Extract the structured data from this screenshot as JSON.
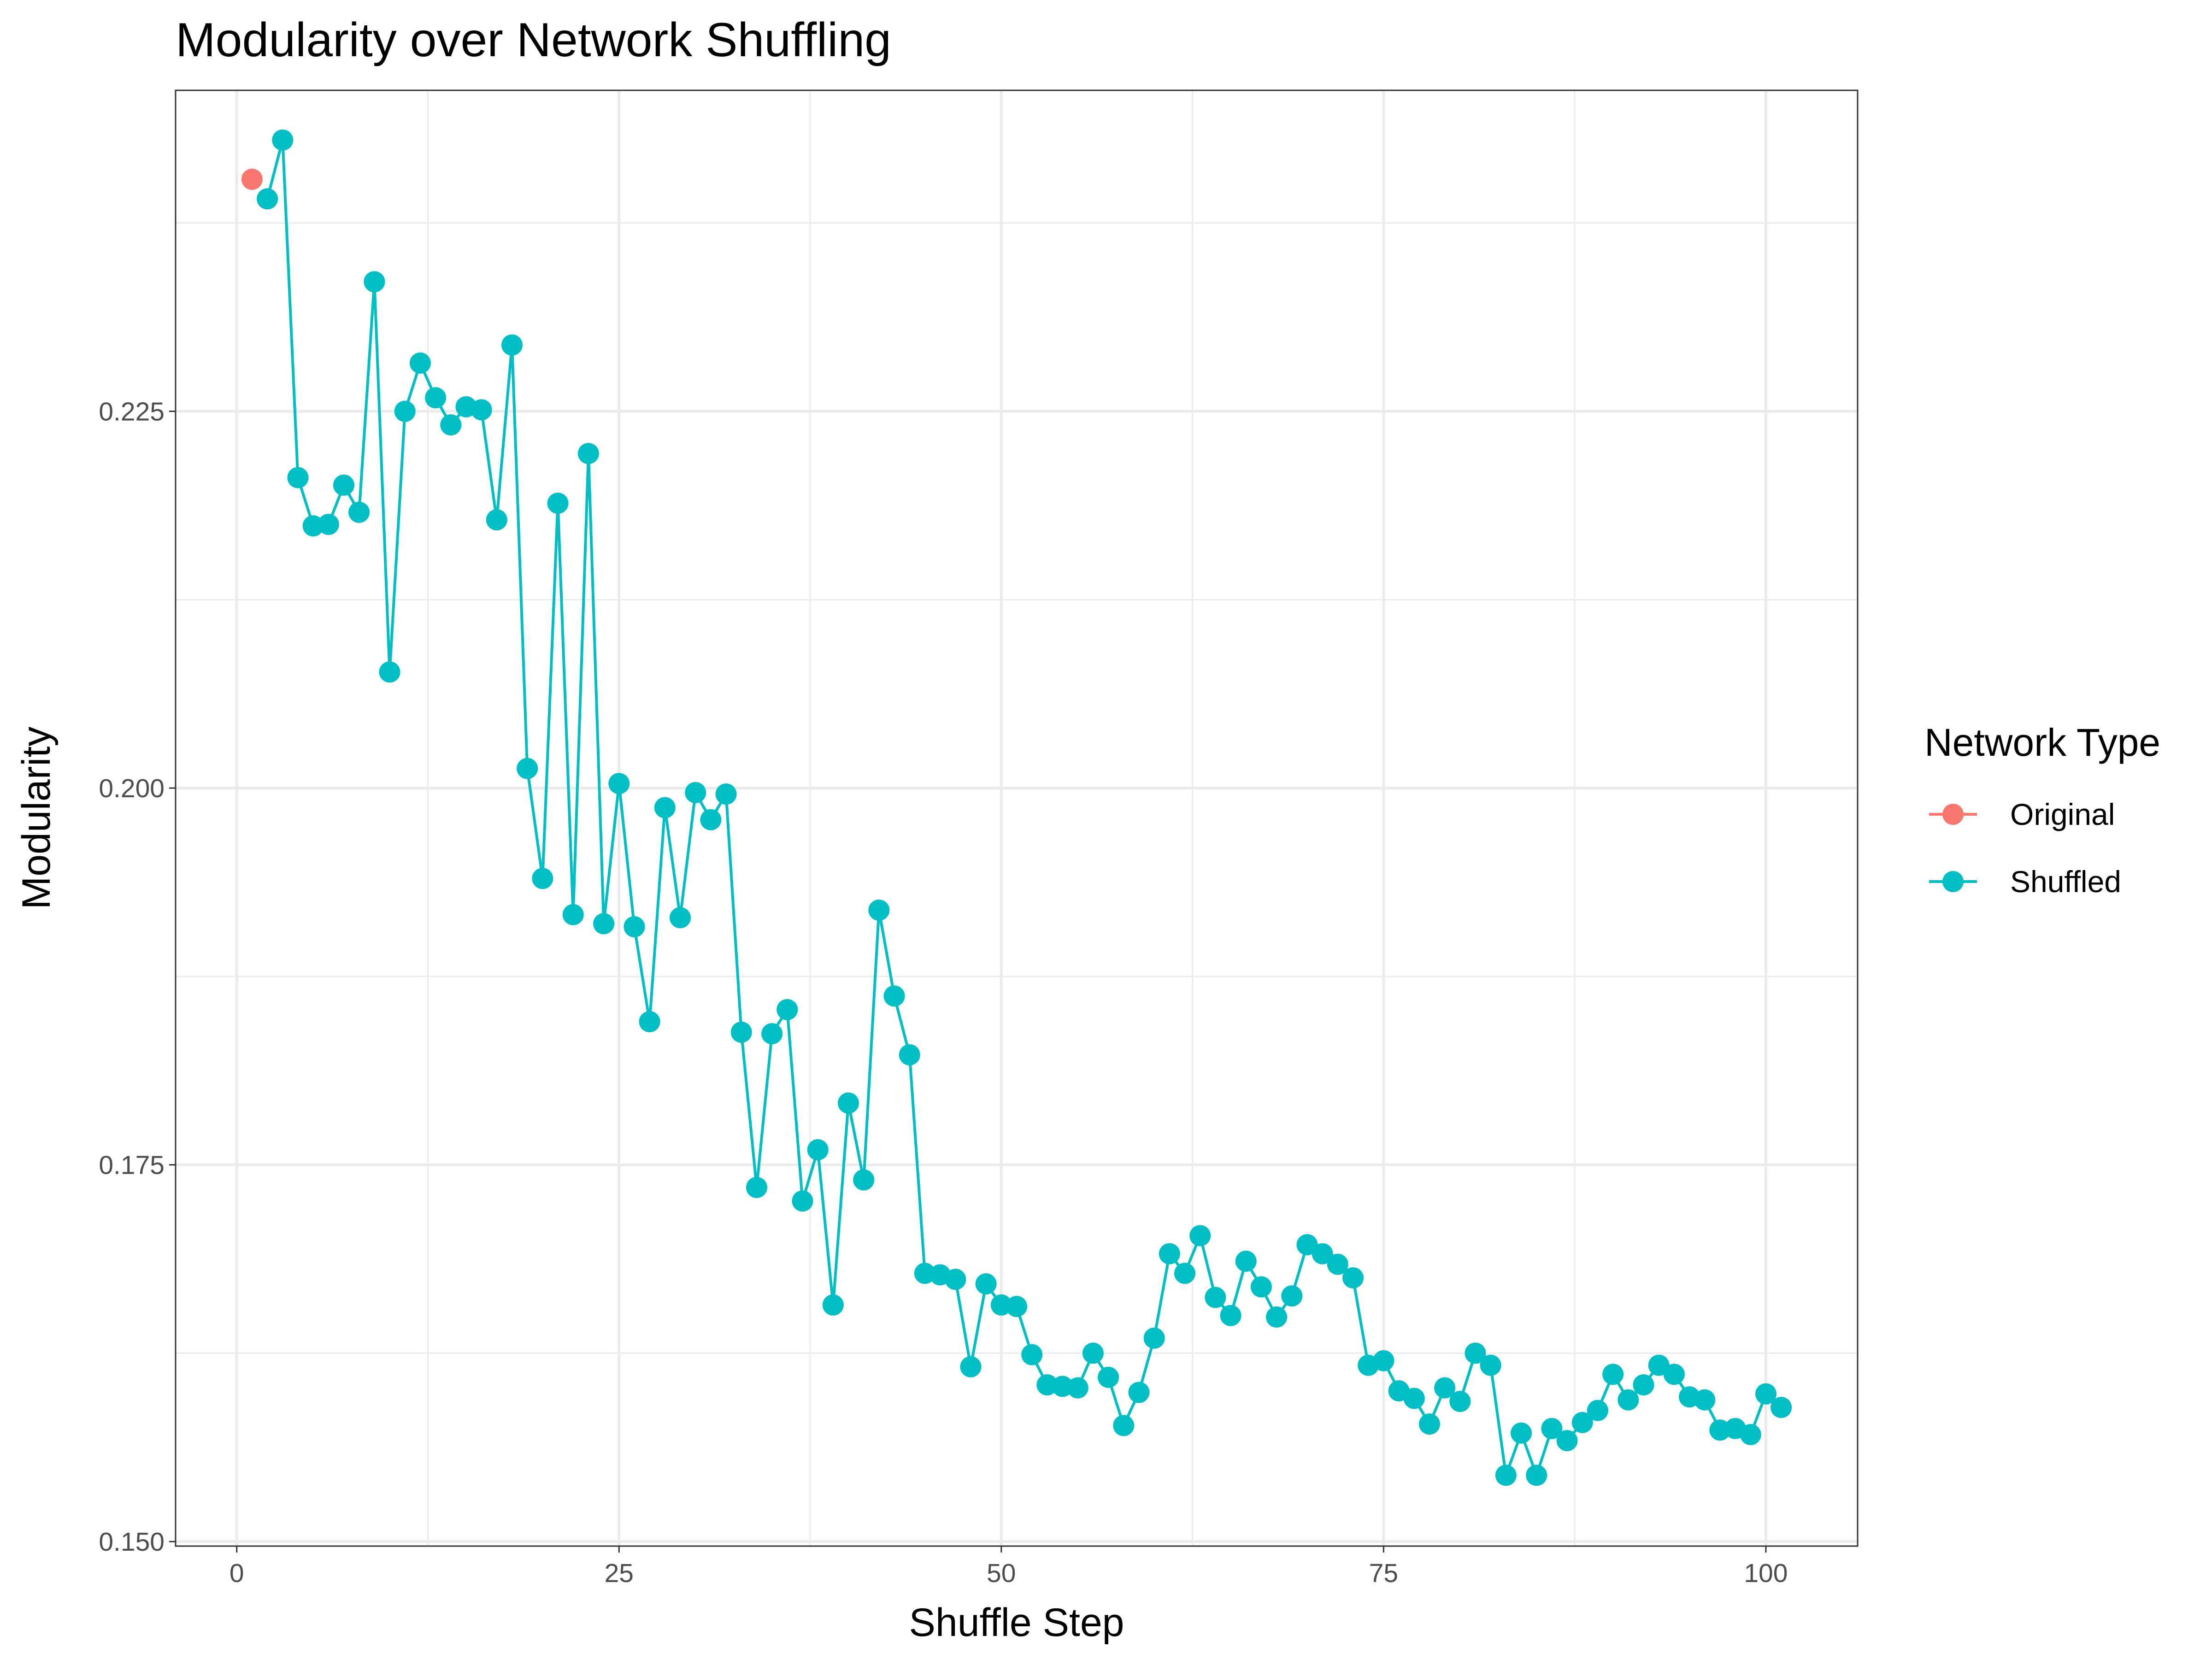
{
  "chart_data": {
    "type": "line",
    "title": "Modularity over Network Shuffling",
    "xlabel": "Shuffle Step",
    "ylabel": "Modularity",
    "xlim": [
      -4,
      106
    ],
    "ylim": [
      0.1497,
      0.2463
    ],
    "x_ticks": [
      0,
      25,
      50,
      75,
      100
    ],
    "x_tick_labels": [
      "0",
      "25",
      "50",
      "75",
      "100"
    ],
    "y_ticks": [
      0.15,
      0.175,
      0.2,
      0.225
    ],
    "y_tick_labels": [
      "0.150",
      "0.175",
      "0.200",
      "0.225"
    ],
    "grid": true,
    "legend": {
      "title": "Network Type",
      "position": "right",
      "entries": [
        "Original",
        "Shuffled"
      ]
    },
    "series": [
      {
        "name": "Original",
        "color": "#F8766D",
        "x": [
          1
        ],
        "y": [
          0.2404
        ]
      },
      {
        "name": "Shuffled",
        "color": "#00BFC4",
        "x": [
          2,
          3,
          4,
          5,
          6,
          7,
          8,
          9,
          10,
          11,
          12,
          13,
          14,
          15,
          16,
          17,
          18,
          19,
          20,
          21,
          22,
          23,
          24,
          25,
          26,
          27,
          28,
          29,
          30,
          31,
          32,
          33,
          34,
          35,
          36,
          37,
          38,
          39,
          40,
          41,
          42,
          43,
          44,
          45,
          46,
          47,
          48,
          49,
          50,
          51,
          52,
          53,
          54,
          55,
          56,
          57,
          58,
          59,
          60,
          61,
          62,
          63,
          64,
          65,
          66,
          67,
          68,
          69,
          70,
          71,
          72,
          73,
          74,
          75,
          76,
          77,
          78,
          79,
          80,
          81,
          82,
          83,
          84,
          85,
          86,
          87,
          88,
          89,
          90,
          91,
          92,
          93,
          94,
          95,
          96,
          97,
          98,
          99,
          100,
          101
        ],
        "y": [
          0.2391,
          0.243,
          0.2206,
          0.2174,
          0.2175,
          0.2201,
          0.2183,
          0.2336,
          0.2077,
          0.225,
          0.2282,
          0.2259,
          0.2241,
          0.2253,
          0.2251,
          0.2178,
          0.2294,
          0.2013,
          0.194,
          0.2189,
          0.1916,
          0.2222,
          0.191,
          0.2003,
          0.1908,
          0.1845,
          0.1987,
          0.1914,
          0.1997,
          0.1979,
          0.1996,
          0.1838,
          0.1735,
          0.1837,
          0.1853,
          0.1726,
          0.176,
          0.1657,
          0.1791,
          0.174,
          0.1919,
          0.1862,
          0.1823,
          0.1678,
          0.1677,
          0.1674,
          0.1616,
          0.1671,
          0.1657,
          0.1656,
          0.1624,
          0.1604,
          0.1603,
          0.1602,
          0.1625,
          0.1609,
          0.1577,
          0.1599,
          0.1635,
          0.1691,
          0.1678,
          0.1703,
          0.1662,
          0.165,
          0.1686,
          0.1669,
          0.1649,
          0.1663,
          0.1697,
          0.1691,
          0.1684,
          0.1675,
          0.1617,
          0.162,
          0.16,
          0.1595,
          0.1578,
          0.1602,
          0.1593,
          0.1625,
          0.1617,
          0.1544,
          0.1572,
          0.1544,
          0.1575,
          0.1567,
          0.1579,
          0.1587,
          0.1611,
          0.1594,
          0.1604,
          0.1617,
          0.1611,
          0.1596,
          0.1594,
          0.1574,
          0.1575,
          0.1571,
          0.1598,
          0.1589
        ]
      }
    ]
  }
}
